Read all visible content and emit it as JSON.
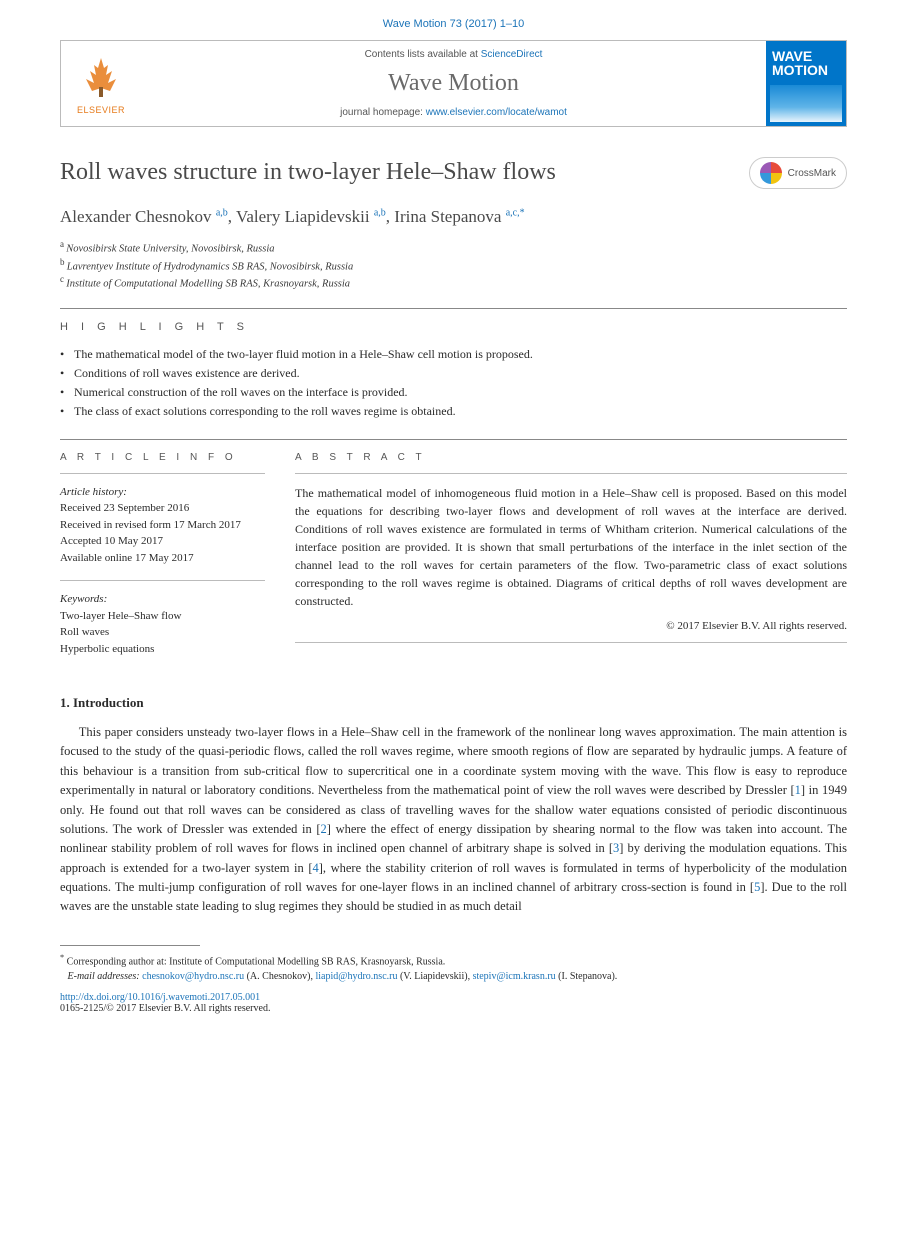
{
  "citation": "Wave Motion 73 (2017) 1–10",
  "header": {
    "contents_prefix": "Contents lists available at ",
    "contents_link": "ScienceDirect",
    "journal": "Wave Motion",
    "homepage_prefix": "journal homepage: ",
    "homepage_link": "www.elsevier.com/locate/wamot",
    "publisher": "ELSEVIER",
    "cover_title": "WAVE MOTION"
  },
  "crossmark": "CrossMark",
  "title": "Roll waves structure in two-layer Hele–Shaw flows",
  "authors": [
    {
      "name": "Alexander Chesnokov",
      "sup": "a,b"
    },
    {
      "name": "Valery Liapidevskii",
      "sup": "a,b"
    },
    {
      "name": "Irina Stepanova",
      "sup": "a,c,*"
    }
  ],
  "author_line_sep": ", ",
  "affiliations": [
    {
      "sup": "a",
      "text": "Novosibirsk State University, Novosibirsk, Russia"
    },
    {
      "sup": "b",
      "text": "Lavrentyev Institute of Hydrodynamics SB RAS, Novosibirsk, Russia"
    },
    {
      "sup": "c",
      "text": "Institute of Computational Modelling SB RAS, Krasnoyarsk, Russia"
    }
  ],
  "highlights": {
    "label": "H I G H L I G H T S",
    "items": [
      "The mathematical model of the two-layer fluid motion in a Hele–Shaw cell motion is proposed.",
      "Conditions of roll waves existence are derived.",
      "Numerical construction of the roll waves on the interface is provided.",
      "The class of exact solutions corresponding to the roll waves regime is obtained."
    ]
  },
  "info": {
    "head": "A R T I C L E   I N F O",
    "history_label": "Article history:",
    "history": [
      "Received 23 September 2016",
      "Received in revised form 17 March 2017",
      "Accepted 10 May 2017",
      "Available online 17 May 2017"
    ],
    "keywords_label": "Keywords:",
    "keywords": [
      "Two-layer Hele–Shaw flow",
      "Roll waves",
      "Hyperbolic equations"
    ]
  },
  "abstract": {
    "head": "A B S T R A C T",
    "text": "The mathematical model of inhomogeneous fluid motion in a Hele–Shaw cell is proposed. Based on this model the equations for describing two-layer flows and development of roll waves at the interface are derived. Conditions of roll waves existence are formulated in terms of Whitham criterion. Numerical calculations of the interface position are provided. It is shown that small perturbations of the interface in the inlet section of the channel lead to the roll waves for certain parameters of the flow. Two-parametric class of exact solutions corresponding to the roll waves regime is obtained. Diagrams of critical depths of roll waves development are constructed.",
    "copyright": "© 2017 Elsevier B.V. All rights reserved."
  },
  "intro": {
    "head": "1.  Introduction",
    "para": "This paper considers unsteady two-layer flows in a Hele–Shaw cell in the framework of the nonlinear long waves approximation. The main attention is focused to the study of the quasi-periodic flows, called the roll waves regime, where smooth regions of flow are separated by hydraulic jumps. A feature of this behaviour is a transition from sub-critical flow to supercritical one in a coordinate system moving with the wave. This flow is easy to reproduce experimentally in natural or laboratory conditions. Nevertheless from the mathematical point of view the roll waves were described by Dressler [1] in 1949 only. He found out that roll waves can be considered as class of travelling waves for the shallow water equations consisted of periodic discontinuous solutions. The work of Dressler was extended in [2] where the effect of energy dissipation by shearing normal to the flow was taken into account. The nonlinear stability problem of roll waves for flows in inclined open channel of arbitrary shape is solved in [3] by deriving the modulation equations. This approach is extended for a two-layer system in [4], where the stability criterion of roll waves is formulated in terms of hyperbolicity of the modulation equations. The multi-jump configuration of roll waves for one-layer flows in an inclined channel of arbitrary cross-section is found in [5]. Due to the roll waves are the unstable state leading to slug regimes they should be studied in as much detail",
    "refs": {
      "1": "1",
      "2": "2",
      "3": "3",
      "4": "4",
      "5": "5"
    }
  },
  "footnote": {
    "corr_label": "*",
    "corr_text": "Corresponding author at: Institute of Computational Modelling SB RAS, Krasnoyarsk, Russia.",
    "email_label": "E-mail addresses:",
    "emails": [
      {
        "addr": "chesnokov@hydro.nsc.ru",
        "who": "(A. Chesnokov)"
      },
      {
        "addr": "liapid@hydro.nsc.ru",
        "who": "(V. Liapidevskii)"
      },
      {
        "addr": "stepiv@icm.krasn.ru",
        "who": "(I. Stepanova)."
      }
    ]
  },
  "doi": {
    "url": "http://dx.doi.org/10.1016/j.wavemoti.2017.05.001",
    "issn": "0165-2125/© 2017 Elsevier B.V. All rights reserved."
  },
  "colors": {
    "link": "#1c74b8",
    "elsevier": "#e67a1a",
    "cover": "#0075c9"
  }
}
